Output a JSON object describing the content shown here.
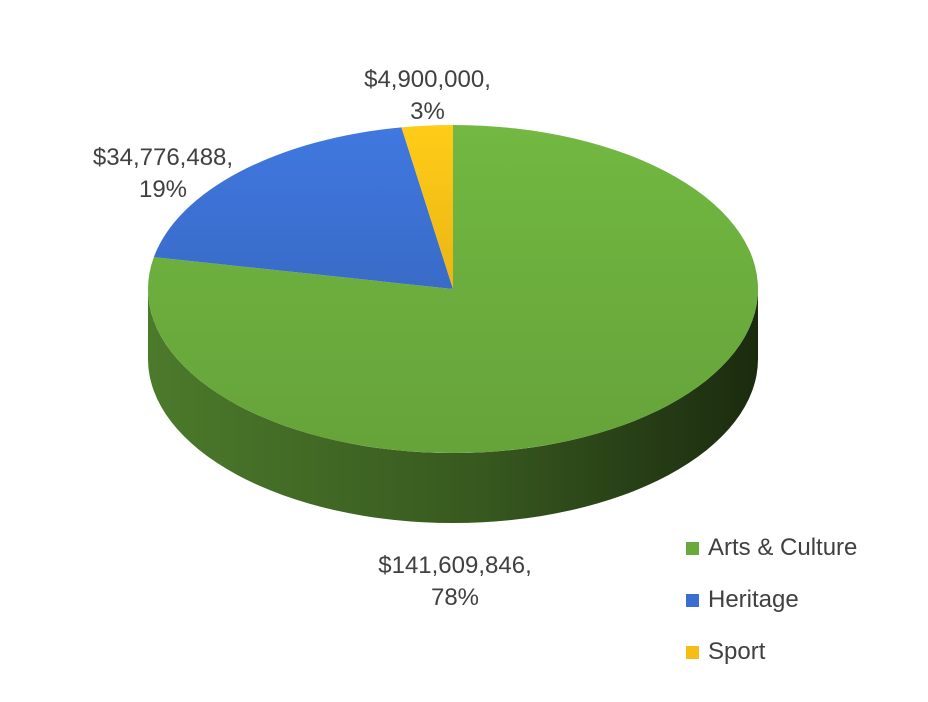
{
  "chart_data": {
    "type": "pie",
    "style": "3d",
    "series": [
      {
        "name": "Arts & Culture",
        "value": 141609846,
        "value_label": "$141,609,846,",
        "percent_label": "78%",
        "color": "#6aaa3c"
      },
      {
        "name": "Heritage",
        "value": 34776488,
        "value_label": "$34,776,488,",
        "percent_label": "19%",
        "color": "#3b6fcf"
      },
      {
        "name": "Sport",
        "value": 4900000,
        "value_label": "$4,900,000,",
        "percent_label": "3%",
        "color": "#f5bd16"
      }
    ],
    "legend_placement": "bottom-right"
  }
}
